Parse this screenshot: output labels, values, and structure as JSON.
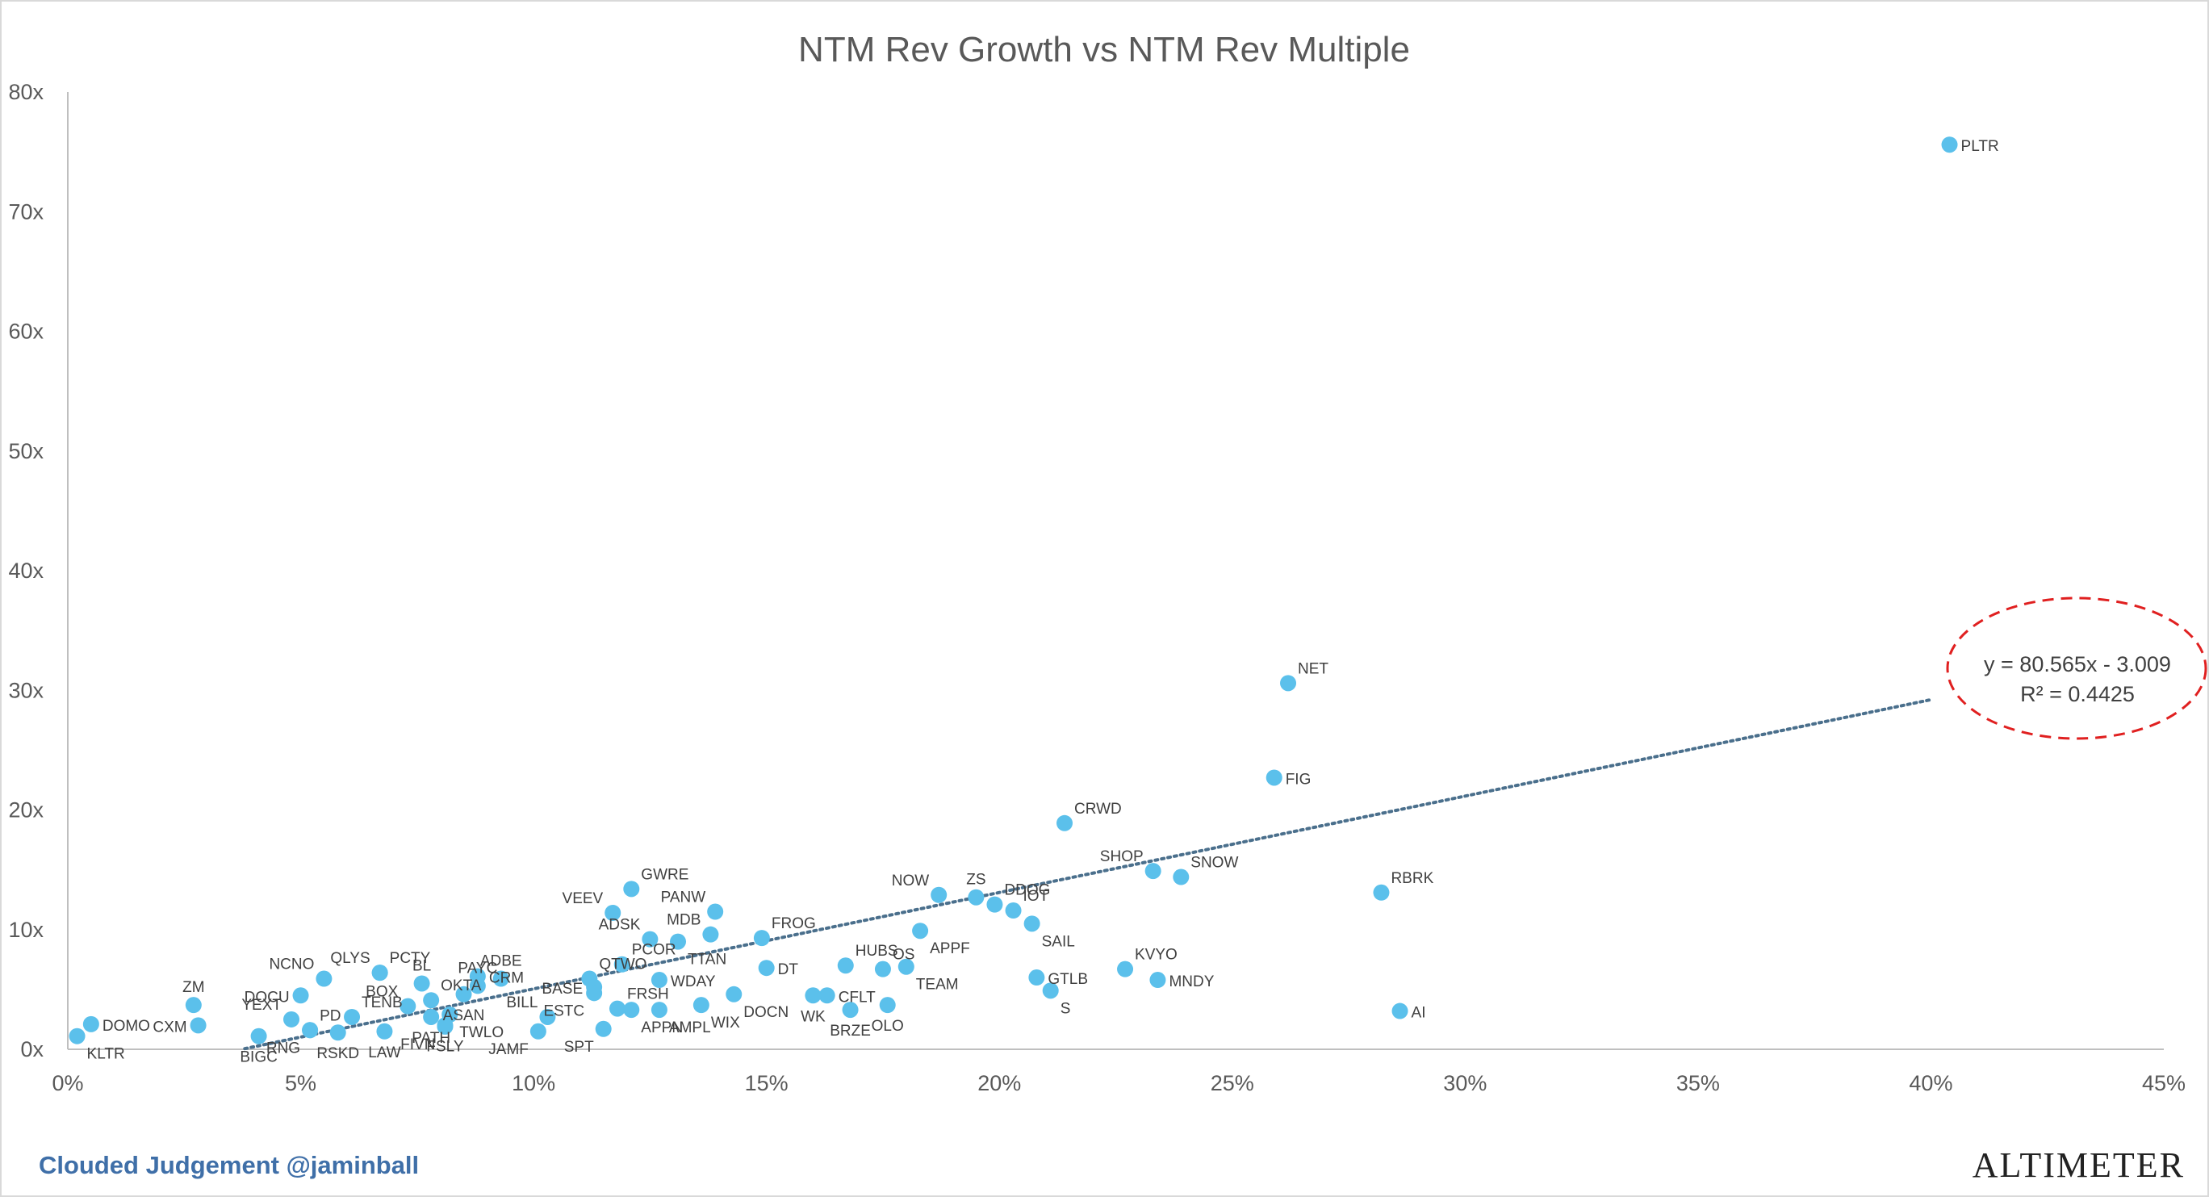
{
  "chart_data": {
    "type": "scatter",
    "title": "NTM Rev Growth vs NTM Rev Multiple",
    "xlabel": "",
    "ylabel": "",
    "xlim": [
      0,
      0.45
    ],
    "ylim": [
      0,
      80
    ],
    "x_ticks": [
      {
        "value": 0,
        "label": "0%"
      },
      {
        "value": 0.05,
        "label": "5%"
      },
      {
        "value": 0.1,
        "label": "10%"
      },
      {
        "value": 0.15,
        "label": "15%"
      },
      {
        "value": 0.2,
        "label": "20%"
      },
      {
        "value": 0.25,
        "label": "25%"
      },
      {
        "value": 0.3,
        "label": "30%"
      },
      {
        "value": 0.35,
        "label": "35%"
      },
      {
        "value": 0.4,
        "label": "40%"
      },
      {
        "value": 0.45,
        "label": "45%"
      }
    ],
    "y_ticks": [
      {
        "value": 0,
        "label": "0x"
      },
      {
        "value": 10,
        "label": "10x"
      },
      {
        "value": 20,
        "label": "20x"
      },
      {
        "value": 30,
        "label": "30x"
      },
      {
        "value": 40,
        "label": "40x"
      },
      {
        "value": 50,
        "label": "50x"
      },
      {
        "value": 60,
        "label": "60x"
      },
      {
        "value": 70,
        "label": "70x"
      },
      {
        "value": 80,
        "label": "80x"
      }
    ],
    "grid": false,
    "marker_color": "#5bc0eb",
    "trendline": {
      "slope": 80.565,
      "intercept": -3.009,
      "x_range": [
        0.038,
        0.4
      ],
      "color": "#4a6f8c",
      "style": "dotted",
      "equation_label": "y = 80.565x - 3.009",
      "r2_label": "R² = 0.4425"
    },
    "highlight": {
      "shape": "ellipse",
      "color": "#e02020",
      "style": "dashed",
      "encloses": "trendline equation"
    },
    "points": [
      {
        "label": "PLTR",
        "x": 0.404,
        "y": 75.6,
        "pos": "right"
      },
      {
        "label": "NET",
        "x": 0.262,
        "y": 30.6,
        "pos": "upright"
      },
      {
        "label": "FIG",
        "x": 0.259,
        "y": 22.7,
        "pos": "right"
      },
      {
        "label": "CRWD",
        "x": 0.214,
        "y": 18.9,
        "pos": "upright"
      },
      {
        "label": "SHOP",
        "x": 0.233,
        "y": 14.9,
        "pos": "upleft"
      },
      {
        "label": "SNOW",
        "x": 0.239,
        "y": 14.4,
        "pos": "upright"
      },
      {
        "label": "RBRK",
        "x": 0.282,
        "y": 13.1,
        "pos": "upright"
      },
      {
        "label": "AI",
        "x": 0.286,
        "y": 3.2,
        "pos": "right"
      },
      {
        "label": "MNDY",
        "x": 0.234,
        "y": 5.8,
        "pos": "right"
      },
      {
        "label": "KVYO",
        "x": 0.227,
        "y": 6.7,
        "pos": "upright"
      },
      {
        "label": "GTLB",
        "x": 0.208,
        "y": 6.0,
        "pos": "right"
      },
      {
        "label": "S",
        "x": 0.211,
        "y": 4.9,
        "pos": "downright"
      },
      {
        "label": "SAIL",
        "x": 0.207,
        "y": 10.5,
        "pos": "downright"
      },
      {
        "label": "IOT",
        "x": 0.203,
        "y": 11.6,
        "pos": "upright"
      },
      {
        "label": "DDOG",
        "x": 0.199,
        "y": 12.1,
        "pos": "upright"
      },
      {
        "label": "ZS",
        "x": 0.195,
        "y": 12.7,
        "pos": "up"
      },
      {
        "label": "NOW",
        "x": 0.187,
        "y": 12.9,
        "pos": "upleft"
      },
      {
        "label": "APPF",
        "x": 0.183,
        "y": 9.9,
        "pos": "downright"
      },
      {
        "label": "TEAM",
        "x": 0.18,
        "y": 6.9,
        "pos": "downright"
      },
      {
        "label": "OS",
        "x": 0.175,
        "y": 6.7,
        "pos": "upright"
      },
      {
        "label": "HUBS",
        "x": 0.167,
        "y": 7.0,
        "pos": "upright"
      },
      {
        "label": "OLO",
        "x": 0.176,
        "y": 3.7,
        "pos": "down"
      },
      {
        "label": "BRZE",
        "x": 0.168,
        "y": 3.3,
        "pos": "down"
      },
      {
        "label": "CFLT",
        "x": 0.163,
        "y": 4.5,
        "pos": "right"
      },
      {
        "label": "WK",
        "x": 0.16,
        "y": 4.5,
        "pos": "down"
      },
      {
        "label": "DT",
        "x": 0.15,
        "y": 6.8,
        "pos": "right"
      },
      {
        "label": "FROG",
        "x": 0.149,
        "y": 9.3,
        "pos": "upright"
      },
      {
        "label": "DOCN",
        "x": 0.143,
        "y": 4.6,
        "pos": "downright"
      },
      {
        "label": "PANW",
        "x": 0.139,
        "y": 11.5,
        "pos": "upleft"
      },
      {
        "label": "MDB",
        "x": 0.138,
        "y": 9.6,
        "pos": "upleft"
      },
      {
        "label": "TTAN",
        "x": 0.131,
        "y": 9.0,
        "pos": "downright"
      },
      {
        "label": "WIX",
        "x": 0.136,
        "y": 3.7,
        "pos": "downright"
      },
      {
        "label": "AMPL",
        "x": 0.127,
        "y": 3.3,
        "pos": "downright"
      },
      {
        "label": "WDAY",
        "x": 0.127,
        "y": 5.8,
        "pos": "right"
      },
      {
        "label": "GWRE",
        "x": 0.121,
        "y": 13.4,
        "pos": "upright"
      },
      {
        "label": "ADSK",
        "x": 0.125,
        "y": 9.2,
        "pos": "upleft"
      },
      {
        "label": "VEEV",
        "x": 0.117,
        "y": 11.4,
        "pos": "upleft"
      },
      {
        "label": "PCOR",
        "x": 0.119,
        "y": 7.1,
        "pos": "upright"
      },
      {
        "label": "QTWO",
        "x": 0.112,
        "y": 5.9,
        "pos": "upright"
      },
      {
        "label": "BASE",
        "x": 0.113,
        "y": 5.2,
        "pos": "left"
      },
      {
        "label": "FRSH",
        "x": 0.118,
        "y": 3.4,
        "pos": "upright"
      },
      {
        "label": "APPN",
        "x": 0.121,
        "y": 3.3,
        "pos": "downright"
      },
      {
        "label": "ESTC",
        "x": 0.113,
        "y": 4.7,
        "pos": "downleft"
      },
      {
        "label": "SPT",
        "x": 0.115,
        "y": 1.7,
        "pos": "downleft"
      },
      {
        "label": "BILL",
        "x": 0.103,
        "y": 2.7,
        "pos": "upleft"
      },
      {
        "label": "JAMF",
        "x": 0.101,
        "y": 1.5,
        "pos": "downleft"
      },
      {
        "label": "ADBE",
        "x": 0.093,
        "y": 5.9,
        "pos": "up"
      },
      {
        "label": "CRM",
        "x": 0.088,
        "y": 6.1,
        "pos": "right"
      },
      {
        "label": "PAYC",
        "x": 0.088,
        "y": 5.3,
        "pos": "up"
      },
      {
        "label": "ASAN",
        "x": 0.085,
        "y": 4.6,
        "pos": "down"
      },
      {
        "label": "TWLO",
        "x": 0.082,
        "y": 2.9,
        "pos": "downright"
      },
      {
        "label": "FSLY",
        "x": 0.081,
        "y": 2.0,
        "pos": "down"
      },
      {
        "label": "PATH",
        "x": 0.078,
        "y": 2.7,
        "pos": "down"
      },
      {
        "label": "OKTA",
        "x": 0.078,
        "y": 4.1,
        "pos": "upright"
      },
      {
        "label": "FIVN",
        "x": 0.081,
        "y": 1.9,
        "pos": "downleft"
      },
      {
        "label": "BL",
        "x": 0.076,
        "y": 5.5,
        "pos": "up"
      },
      {
        "label": "BOX",
        "x": 0.073,
        "y": 3.6,
        "pos": "upleft"
      },
      {
        "label": "TENB",
        "x": 0.061,
        "y": 2.7,
        "pos": "upright"
      },
      {
        "label": "PCTY",
        "x": 0.067,
        "y": 6.4,
        "pos": "upright"
      },
      {
        "label": "QLYS",
        "x": 0.067,
        "y": 6.4,
        "pos": "upleft"
      },
      {
        "label": "LAW",
        "x": 0.068,
        "y": 1.5,
        "pos": "down"
      },
      {
        "label": "NCNO",
        "x": 0.055,
        "y": 5.9,
        "pos": "upleft"
      },
      {
        "label": "DOCU",
        "x": 0.05,
        "y": 4.5,
        "pos": "left"
      },
      {
        "label": "YEXT",
        "x": 0.048,
        "y": 2.5,
        "pos": "upleft"
      },
      {
        "label": "PD",
        "x": 0.052,
        "y": 1.6,
        "pos": "upright"
      },
      {
        "label": "RSKD",
        "x": 0.058,
        "y": 1.4,
        "pos": "down"
      },
      {
        "label": "RNG",
        "x": 0.052,
        "y": 1.6,
        "pos": "downleft"
      },
      {
        "label": "BIGC",
        "x": 0.041,
        "y": 1.1,
        "pos": "down"
      },
      {
        "label": "ZM",
        "x": 0.027,
        "y": 3.7,
        "pos": "up"
      },
      {
        "label": "CXM",
        "x": 0.028,
        "y": 2.0,
        "pos": "left"
      },
      {
        "label": "DOMO",
        "x": 0.005,
        "y": 2.1,
        "pos": "right"
      },
      {
        "label": "KLTR",
        "x": 0.002,
        "y": 1.1,
        "pos": "downright"
      }
    ]
  },
  "footer": {
    "left_text": "Clouded Judgement @jaminball",
    "right_text": "ALTIMETER"
  }
}
